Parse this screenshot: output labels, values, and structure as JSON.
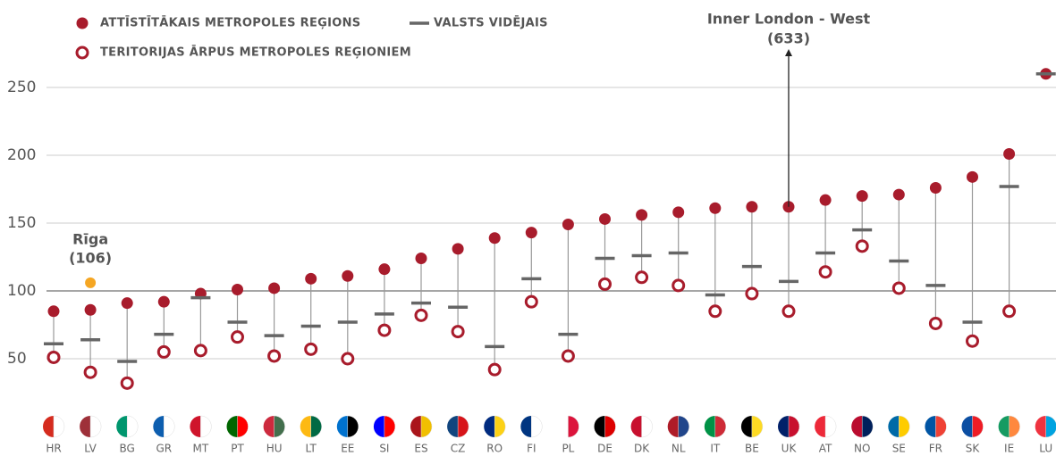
{
  "chart_data": {
    "type": "dotrange",
    "categories": [
      "HR",
      "LV",
      "BG",
      "GR",
      "MT",
      "PT",
      "HU",
      "LT",
      "EE",
      "SI",
      "ES",
      "CZ",
      "RO",
      "FI",
      "PL",
      "DE",
      "DK",
      "NL",
      "IT",
      "BE",
      "UK",
      "AT",
      "NO",
      "SE",
      "FR",
      "SK",
      "IE",
      "LU"
    ],
    "series": [
      {
        "name": "ATTĪSTĪTĀKAIS METROPOLES REĢIONS",
        "color": "#a81c2c",
        "marker": "dot",
        "values": [
          85,
          86,
          91,
          92,
          98,
          101,
          102,
          109,
          111,
          116,
          124,
          131,
          139,
          143,
          149,
          153,
          156,
          158,
          161,
          162,
          162,
          167,
          170,
          171,
          176,
          184,
          201,
          260
        ]
      },
      {
        "name": "VALSTS VIDĒJAIS",
        "color": "#666666",
        "marker": "dash",
        "values": [
          61,
          64,
          48,
          68,
          95,
          77,
          67,
          74,
          77,
          83,
          91,
          88,
          59,
          109,
          68,
          124,
          126,
          128,
          97,
          118,
          107,
          128,
          145,
          122,
          104,
          77,
          177,
          260
        ]
      },
      {
        "name": "TERITORIJAS ĀRPUS METROPOLES REĢIONIEM",
        "color": "#a81c2c",
        "marker": "ring",
        "values": [
          51,
          40,
          32,
          55,
          56,
          66,
          52,
          57,
          50,
          71,
          82,
          70,
          42,
          92,
          52,
          105,
          110,
          104,
          85,
          98,
          85,
          114,
          133,
          102,
          76,
          63,
          85,
          null
        ]
      }
    ],
    "annotations": [
      {
        "text": "Rīga",
        "label": "(106)",
        "value": 106,
        "category": 1,
        "color": "#f5a623"
      },
      {
        "text": "Inner London - West",
        "label": "(633)",
        "category": 20
      }
    ],
    "ylim": [
      20,
      290
    ],
    "yticks": [
      50,
      100,
      150,
      200,
      250
    ],
    "grid": true
  }
}
